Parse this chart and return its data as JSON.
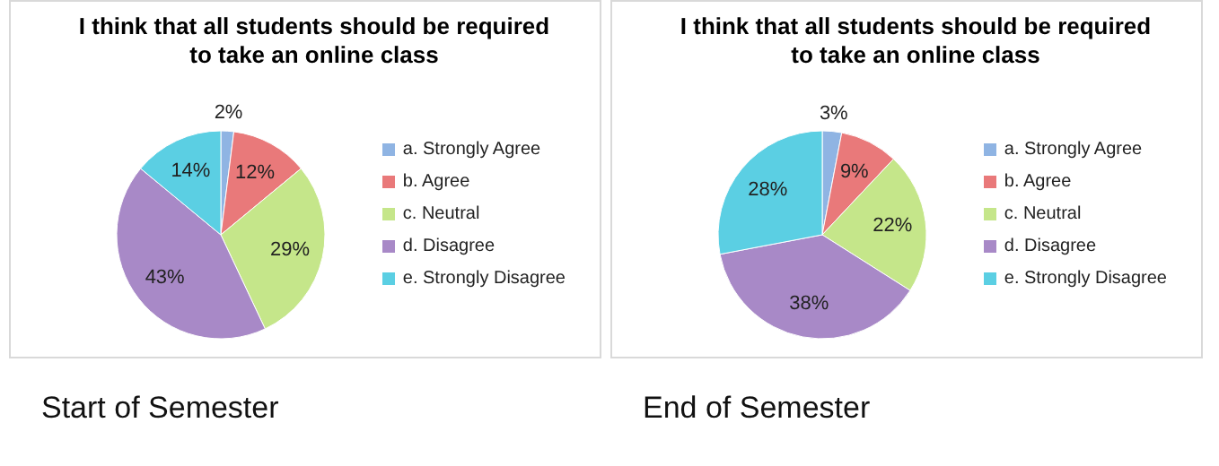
{
  "chart_data": [
    {
      "type": "pie",
      "title": "I think that all students should be required to take an online class",
      "categories": [
        "a. Strongly Agree",
        "b. Agree",
        "c. Neutral",
        "d. Disagree",
        "e. Strongly Disagree"
      ],
      "values": [
        2,
        12,
        29,
        43,
        14
      ],
      "value_labels": [
        "2%",
        "12%",
        "29%",
        "43%",
        "14%"
      ],
      "colors": [
        "#8fb4e3",
        "#e9797a",
        "#c5e68a",
        "#a889c7",
        "#5bcfe3"
      ],
      "legend": "right",
      "annotations": [
        "Start of Semester"
      ]
    },
    {
      "type": "pie",
      "title": "I think that all students should be required to take an online class",
      "categories": [
        "a. Strongly Agree",
        "b. Agree",
        "c. Neutral",
        "d. Disagree",
        "e. Strongly Disagree"
      ],
      "values": [
        3,
        9,
        22,
        38,
        28
      ],
      "value_labels": [
        "3%",
        "9%",
        "22%",
        "38%",
        "28%"
      ],
      "colors": [
        "#8fb4e3",
        "#e9797a",
        "#c5e68a",
        "#a889c7",
        "#5bcfe3"
      ],
      "legend": "right",
      "annotations": [
        "End of Semester"
      ]
    }
  ]
}
